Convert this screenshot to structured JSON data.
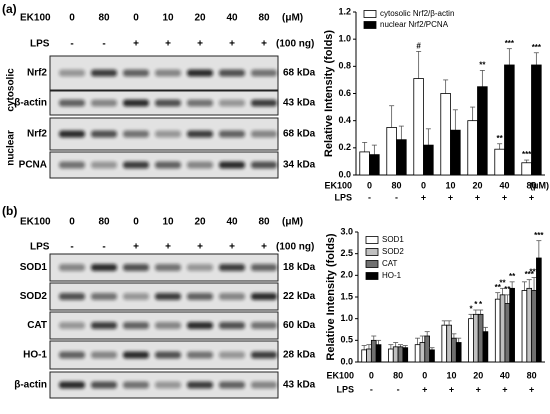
{
  "figure": {
    "panels": [
      {
        "label": "(a)",
        "ek100_label": "EK100",
        "ek100": [
          "0",
          "80",
          "0",
          "10",
          "20",
          "40",
          "80"
        ],
        "ek100_unit": "(μM)",
        "lps_label": "LPS",
        "lps": [
          "-",
          "-",
          "+",
          "+",
          "+",
          "+",
          "+"
        ],
        "lps_unit": "(100 ng)",
        "rows": [
          {
            "name": "Nrf2",
            "size": "68 kDa"
          },
          {
            "name": "β-actin",
            "size": "43 kDa"
          },
          {
            "name": "Nrf2",
            "size": "68 kDa"
          },
          {
            "name": "PCNA",
            "size": "34 kDa"
          }
        ],
        "groups": [
          "cytosolic",
          "nuclear"
        ]
      },
      {
        "label": "(b)",
        "ek100_label": "EK100",
        "ek100": [
          "0",
          "80",
          "0",
          "10",
          "20",
          "40",
          "80"
        ],
        "ek100_unit": "(μM)",
        "lps_label": "LPS",
        "lps": [
          "-",
          "-",
          "+",
          "+",
          "+",
          "+",
          "+"
        ],
        "lps_unit": "(100 ng)",
        "rows": [
          {
            "name": "SOD1",
            "size": "18 kDa"
          },
          {
            "name": "SOD2",
            "size": "22 kDa"
          },
          {
            "name": "CAT",
            "size": "60 kDa"
          },
          {
            "name": "HO-1",
            "size": "28 kDa"
          },
          {
            "name": "β-actin",
            "size": "43 kDa"
          }
        ]
      }
    ]
  },
  "chart_data": [
    {
      "type": "bar",
      "ylabel": "Relative Intensity (folds)",
      "x_label": "EK100",
      "x_unit": "(μM)",
      "categories": [
        "0",
        "80",
        "0",
        "10",
        "20",
        "40",
        "80"
      ],
      "lps_label": "LPS",
      "lps": [
        "-",
        "-",
        "+",
        "+",
        "+",
        "+",
        "+"
      ],
      "ylim": [
        0,
        1.2
      ],
      "yticks": [
        {
          "value": 0,
          "label": "0.0"
        },
        0.2,
        0.4,
        0.6,
        0.8,
        {
          "value": 1,
          "label": "1.0"
        },
        1.2
      ],
      "series": [
        {
          "name": "cytosolic Nrf2/β-actin",
          "color": "#ffffff",
          "values": [
            0.17,
            0.35,
            0.71,
            0.6,
            0.4,
            0.19,
            0.09
          ],
          "errors": [
            0.07,
            0.16,
            0.2,
            0.1,
            0.1,
            0.04,
            0.02
          ]
        },
        {
          "name": "nuclear Nrf2/PCNA",
          "color": "#000000",
          "values": [
            0.15,
            0.26,
            0.22,
            0.33,
            0.65,
            0.81,
            0.81
          ],
          "errors": [
            0.07,
            0.1,
            0.12,
            0.15,
            0.12,
            0.12,
            0.09
          ]
        }
      ],
      "annotations": [
        {
          "text": "#",
          "series": 0,
          "index": 2
        },
        {
          "text": "**",
          "series": 1,
          "index": 4
        },
        {
          "text": "**",
          "series": 0,
          "index": 5
        },
        {
          "text": "***",
          "series": 1,
          "index": 5
        },
        {
          "text": "***",
          "series": 0,
          "index": 6
        },
        {
          "text": "***",
          "series": 1,
          "index": 6
        }
      ]
    },
    {
      "type": "bar",
      "ylabel": "Relative Intensity (folds)",
      "x_label": "EK100",
      "categories": [
        "0",
        "80",
        "0",
        "10",
        "20",
        "40",
        "80"
      ],
      "lps_label": "LPS",
      "lps": [
        "-",
        "-",
        "+",
        "+",
        "+",
        "+",
        "+"
      ],
      "ylim": [
        0,
        3
      ],
      "yticks": [
        {
          "value": 0,
          "label": "0.0"
        },
        0.5,
        {
          "value": 1,
          "label": "1.0"
        },
        1.5,
        {
          "value": 2,
          "label": "2.0"
        },
        2.5,
        {
          "value": 3,
          "label": "3.0"
        }
      ],
      "series": [
        {
          "name": "SOD1",
          "color": "#ffffff",
          "values": [
            0.28,
            0.3,
            0.4,
            0.85,
            1.0,
            1.45,
            1.65
          ],
          "errors": [
            0.1,
            0.1,
            0.15,
            0.1,
            0.1,
            0.15,
            0.2
          ]
        },
        {
          "name": "SOD2",
          "color": "#c0c0c0",
          "values": [
            0.3,
            0.35,
            0.45,
            0.85,
            1.1,
            1.55,
            1.7
          ],
          "errors": [
            0.1,
            0.1,
            0.15,
            0.1,
            0.1,
            0.15,
            0.2
          ]
        },
        {
          "name": "CAT",
          "color": "#707070",
          "values": [
            0.5,
            0.35,
            0.6,
            0.55,
            1.1,
            1.35,
            1.65
          ],
          "errors": [
            0.1,
            0.05,
            0.1,
            0.1,
            0.1,
            0.2,
            0.3
          ]
        },
        {
          "name": "HO-1",
          "color": "#000000",
          "values": [
            0.4,
            0.33,
            0.28,
            0.45,
            0.7,
            1.7,
            2.4
          ],
          "errors": [
            0.1,
            0.05,
            0.05,
            0.1,
            0.1,
            0.15,
            0.4
          ]
        }
      ],
      "annotations": [
        {
          "text": "*",
          "series": 0,
          "index": 4
        },
        {
          "text": "*",
          "series": 1,
          "index": 4
        },
        {
          "text": "*",
          "series": 2,
          "index": 4
        },
        {
          "text": "**",
          "series": 0,
          "index": 5
        },
        {
          "text": "**",
          "series": 1,
          "index": 5
        },
        {
          "text": "**",
          "series": 2,
          "index": 5
        },
        {
          "text": "**",
          "series": 3,
          "index": 5
        },
        {
          "text": "***",
          "series": 1,
          "index": 6
        },
        {
          "text": "***",
          "series": 2,
          "index": 6
        },
        {
          "text": "***",
          "series": 3,
          "index": 6
        }
      ]
    }
  ]
}
